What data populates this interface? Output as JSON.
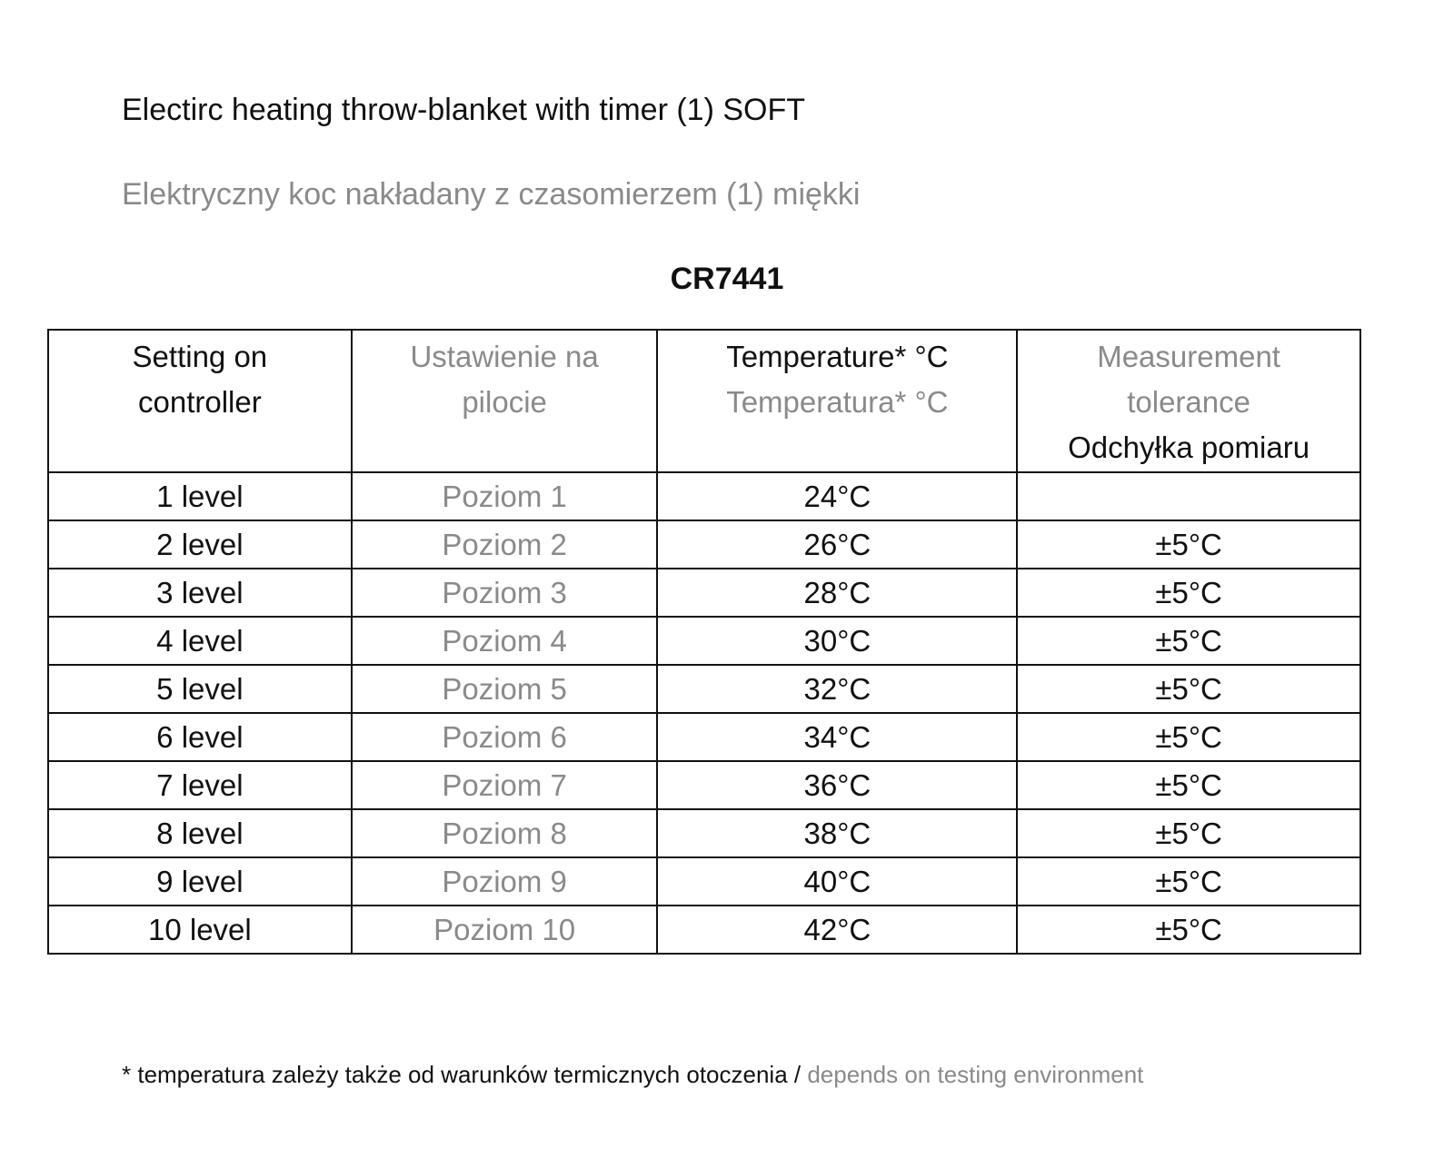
{
  "title": "Electirc heating throw-blanket with timer (1) SOFT",
  "subtitle": "Elektryczny koc nakładany z czasomierzem (1) miękki",
  "model": "CR7441",
  "table": {
    "headers": {
      "setting_en": [
        "Setting on",
        "controller"
      ],
      "setting_pl": [
        "Ustawienie na",
        "pilocie"
      ],
      "temp_en": "Temperature* °C",
      "temp_pl": "Temperatura*  °C",
      "tol_en": [
        "Measurement",
        "tolerance"
      ],
      "tol_pl": "Odchyłka pomiaru"
    },
    "rows": [
      {
        "en": "1 level",
        "pl": "Poziom 1",
        "temp": "24°C",
        "tol": ""
      },
      {
        "en": "2 level",
        "pl": "Poziom 2",
        "temp": "26°C",
        "tol": "±5°C"
      },
      {
        "en": "3 level",
        "pl": "Poziom 3",
        "temp": "28°C",
        "tol": "±5°C"
      },
      {
        "en": "4 level",
        "pl": "Poziom 4",
        "temp": "30°C",
        "tol": "±5°C"
      },
      {
        "en": "5 level",
        "pl": "Poziom 5",
        "temp": "32°C",
        "tol": "±5°C"
      },
      {
        "en": "6 level",
        "pl": "Poziom 6",
        "temp": "34°C",
        "tol": "±5°C"
      },
      {
        "en": "7 level",
        "pl": "Poziom 7",
        "temp": "36°C",
        "tol": "±5°C"
      },
      {
        "en": "8 level",
        "pl": "Poziom 8",
        "temp": "38°C",
        "tol": "±5°C"
      },
      {
        "en": "9 level",
        "pl": "Poziom 9",
        "temp": "40°C",
        "tol": "±5°C"
      },
      {
        "en": "10 level",
        "pl": "Poziom 10",
        "temp": "42°C",
        "tol": "±5°C"
      }
    ]
  },
  "footnote": {
    "pl": "* temperatura zależy także od warunków termicznych otoczenia / ",
    "en": "depends on testing environment"
  },
  "colors": {
    "text": "#111111",
    "secondary": "#8a8a8a"
  }
}
